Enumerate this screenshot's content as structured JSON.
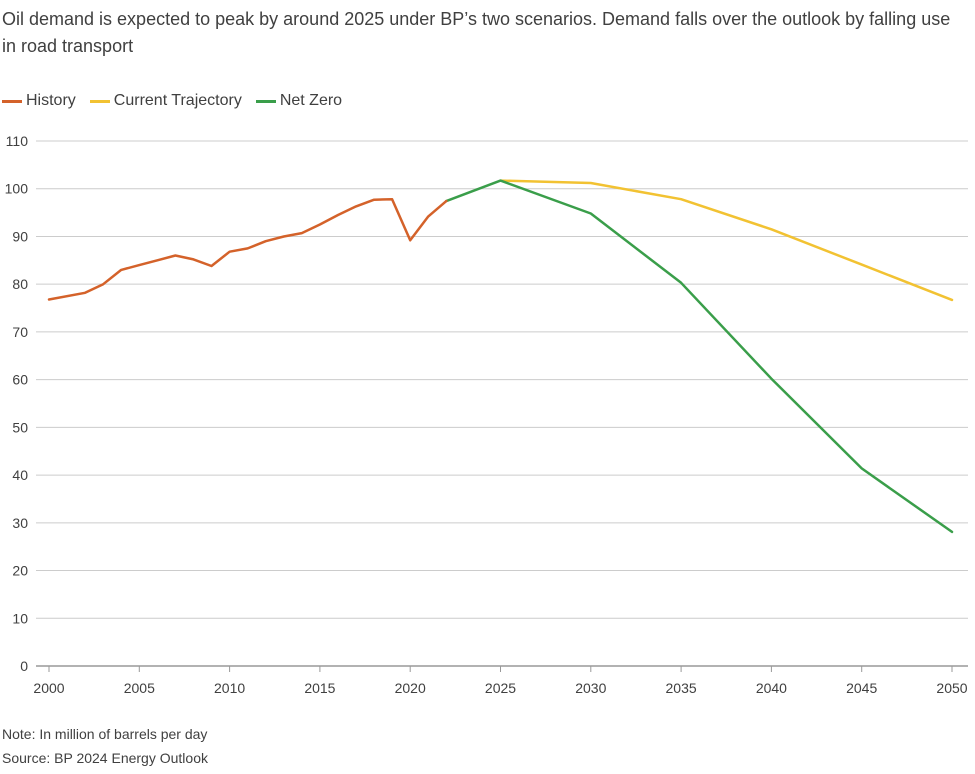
{
  "title": "Oil demand is expected to peak by around 2025 under BP’s two scenarios. Demand falls over the outlook by falling use in road transport",
  "note": "Note: In million of barrels per day",
  "source": "Source: BP 2024 Energy Outlook",
  "colors": {
    "History": "#d4622a",
    "Current Trajectory": "#f2c232",
    "Net Zero": "#3a9e4a",
    "grid": "#cccccc",
    "axis": "#999999"
  },
  "chart_data": {
    "type": "line",
    "title": "Oil demand is expected to peak by around 2025 under BP’s two scenarios. Demand falls over the outlook by falling use in road transport",
    "xlabel": "",
    "ylabel": "",
    "xlim": [
      2000,
      2050
    ],
    "ylim": [
      0,
      110
    ],
    "xticks": [
      2000,
      2005,
      2010,
      2015,
      2020,
      2025,
      2030,
      2035,
      2040,
      2045,
      2050
    ],
    "yticks": [
      0,
      10,
      20,
      30,
      40,
      50,
      60,
      70,
      80,
      90,
      100,
      110
    ],
    "grid": true,
    "legend": "top-left",
    "series": [
      {
        "name": "History",
        "x": [
          2000,
          2002,
          2003,
          2004,
          2005,
          2006,
          2007,
          2008,
          2009,
          2010,
          2011,
          2012,
          2013,
          2014,
          2015,
          2016,
          2017,
          2018,
          2019,
          2020,
          2021,
          2022
        ],
        "y": [
          76.8,
          78.2,
          80.0,
          83.0,
          84.0,
          85.0,
          86.0,
          85.2,
          83.8,
          86.8,
          87.5,
          89.0,
          90.0,
          90.7,
          92.5,
          94.5,
          96.3,
          97.7,
          97.8,
          89.2,
          94.2,
          97.4
        ]
      },
      {
        "name": "Current Trajectory",
        "x": [
          2025,
          2030,
          2035,
          2040,
          2045,
          2050
        ],
        "y": [
          101.7,
          101.2,
          97.8,
          91.5,
          84.1,
          76.7
        ]
      },
      {
        "name": "Net Zero",
        "x": [
          2022,
          2025,
          2030,
          2035,
          2040,
          2045,
          2050
        ],
        "y": [
          97.4,
          101.7,
          94.8,
          80.3,
          60.2,
          41.4,
          28.1
        ]
      }
    ]
  }
}
